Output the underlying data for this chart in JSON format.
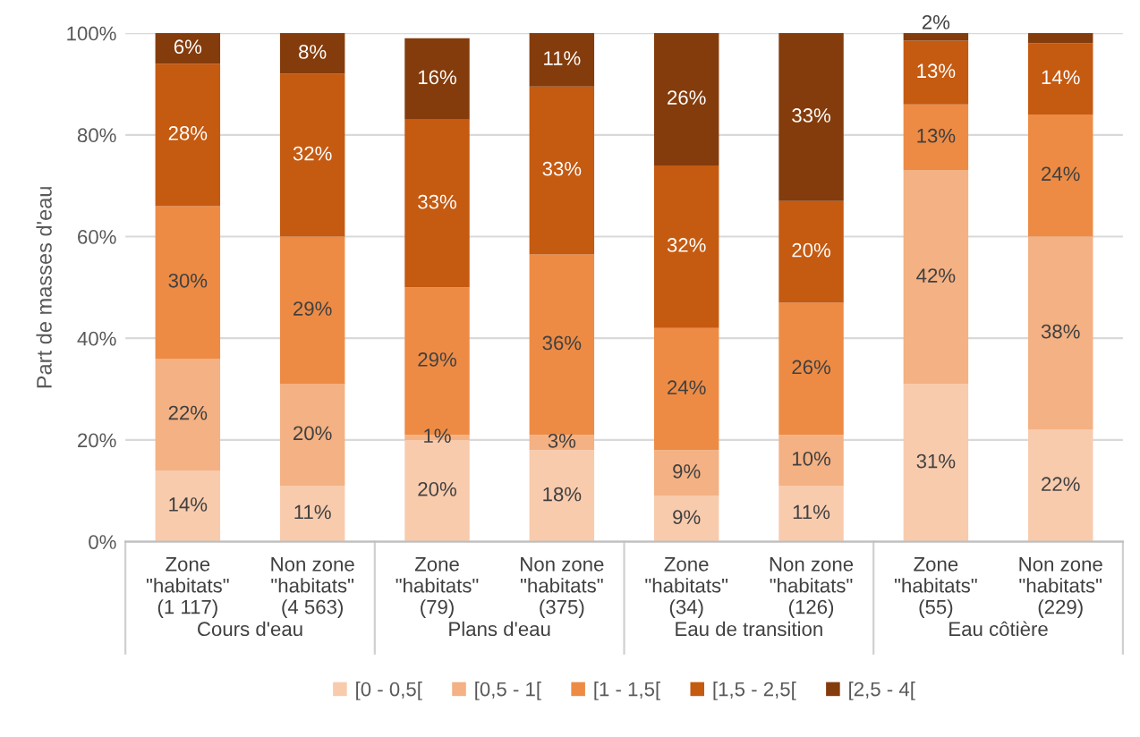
{
  "chart_data": {
    "type": "bar",
    "stacked": true,
    "ylabel": "Part de masses d'eau",
    "categories": [
      "Zone\n\"habitats\"\n(1 117)",
      "Non zone\n\"habitats\"\n(4 563)",
      "Zone\n\"habitats\"\n(79)",
      "Non zone\n\"habitats\"\n(375)",
      "Zone\n\"habitats\"\n(34)",
      "Non zone\n\"habitats\"\n(126)",
      "Zone\n\"habitats\"\n(55)",
      "Non zone\n\"habitats\"\n(229)"
    ],
    "annotations": [
      "Cours d'eau",
      "Plans d'eau",
      "Eau de transition",
      "Eau côtière"
    ],
    "series": [
      {
        "name": "[0 - 0,5[",
        "color": "#f8cbad",
        "values": [
          14,
          11,
          20,
          18,
          9,
          11,
          31,
          22
        ],
        "value_labels": [
          "14%",
          "11%",
          "20%",
          "18%",
          "9%",
          "11%",
          "31%",
          "22%"
        ]
      },
      {
        "name": "[0,5 - 1[",
        "color": "#f4b183",
        "values": [
          22,
          20,
          1,
          3,
          9,
          10,
          42,
          38
        ],
        "value_labels": [
          "22%",
          "20%",
          "1%",
          "3%",
          "9%",
          "10%",
          "42%",
          "38%"
        ]
      },
      {
        "name": "[1 - 1,5[",
        "color": "#ed8b45",
        "values": [
          30,
          29,
          29,
          35.5,
          24,
          26,
          13,
          24
        ],
        "value_labels": [
          "30%",
          "29%",
          "29%",
          "36%",
          "24%",
          "26%",
          "13%",
          "24%"
        ]
      },
      {
        "name": "[1,5 - 2,5[",
        "color": "#c55a11",
        "values": [
          28,
          32,
          33,
          33,
          32,
          20,
          12.5,
          14
        ],
        "value_labels": [
          "28%",
          "32%",
          "33%",
          "33%",
          "32%",
          "20%",
          "13%",
          "14%"
        ]
      },
      {
        "name": "[2,5 - 4[",
        "color": "#843c0c",
        "values": [
          6,
          8,
          16,
          10.5,
          26,
          33,
          1.5,
          2
        ],
        "value_labels": [
          "6%",
          "8%",
          "16%",
          "11%",
          "26%",
          "33%",
          "2%",
          null
        ]
      }
    ],
    "ylim": [
      0,
      100
    ],
    "yticks": [
      {
        "value": 0,
        "label": "0%"
      },
      {
        "value": 20,
        "label": "20%"
      },
      {
        "value": 40,
        "label": "40%"
      },
      {
        "value": 60,
        "label": "60%"
      },
      {
        "value": 80,
        "label": "80%"
      },
      {
        "value": 100,
        "label": "100%"
      }
    ],
    "grid": "y",
    "legend": "bottom"
  }
}
